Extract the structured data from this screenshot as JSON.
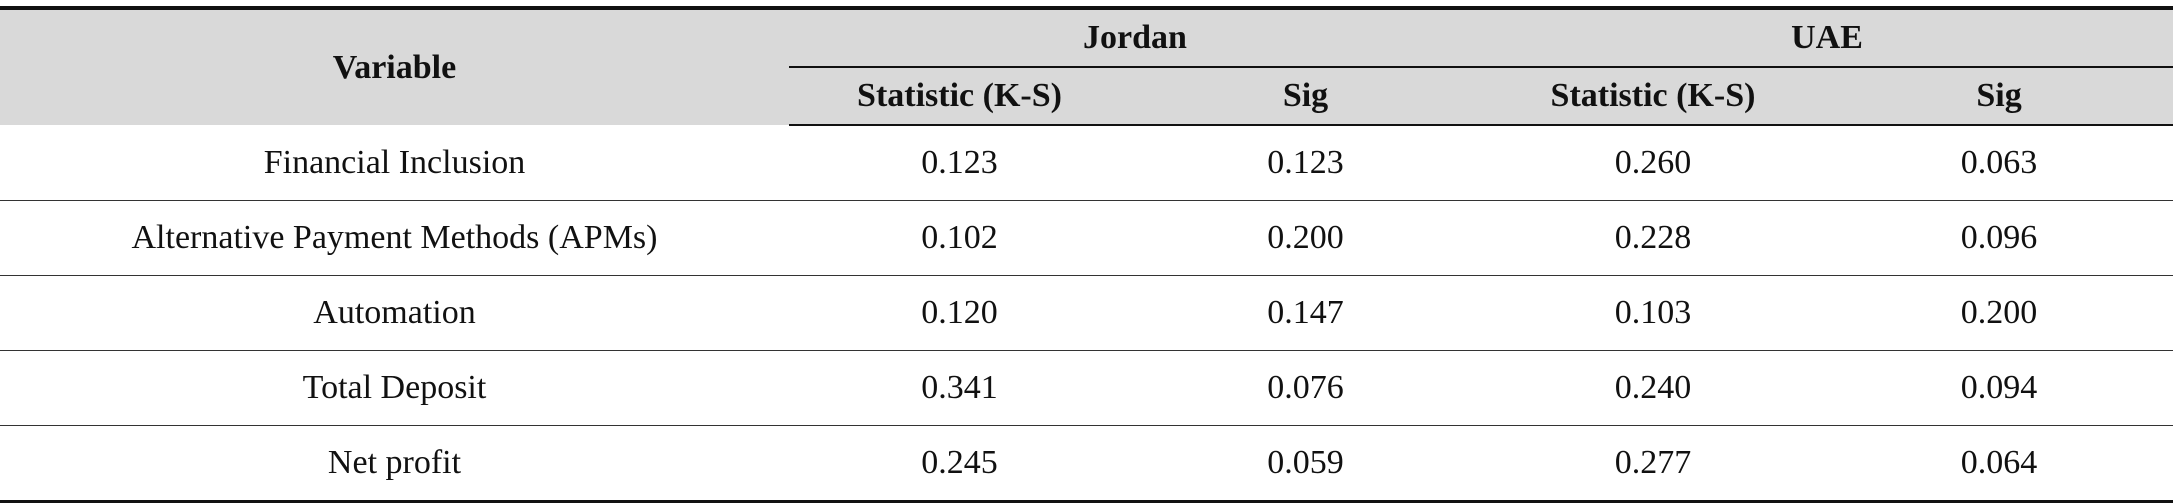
{
  "header": {
    "variable": "Variable",
    "groups": [
      "Jordan",
      "UAE"
    ],
    "subheaders": [
      "Statistic (K-S)",
      "Sig",
      "Statistic (K-S)",
      "Sig"
    ]
  },
  "table": {
    "rows": [
      [
        "Financial Inclusion",
        "0.123",
        "0.123",
        "0.260",
        "0.063"
      ],
      [
        "Alternative Payment Methods (APMs)",
        "0.102",
        "0.200",
        "0.228",
        "0.096"
      ],
      [
        "Automation",
        "0.120",
        "0.147",
        "0.103",
        "0.200"
      ],
      [
        "Total Deposit",
        "0.341",
        "0.076",
        "0.240",
        "0.094"
      ],
      [
        "Net profit",
        "0.245",
        "0.059",
        "0.277",
        "0.064"
      ]
    ]
  }
}
